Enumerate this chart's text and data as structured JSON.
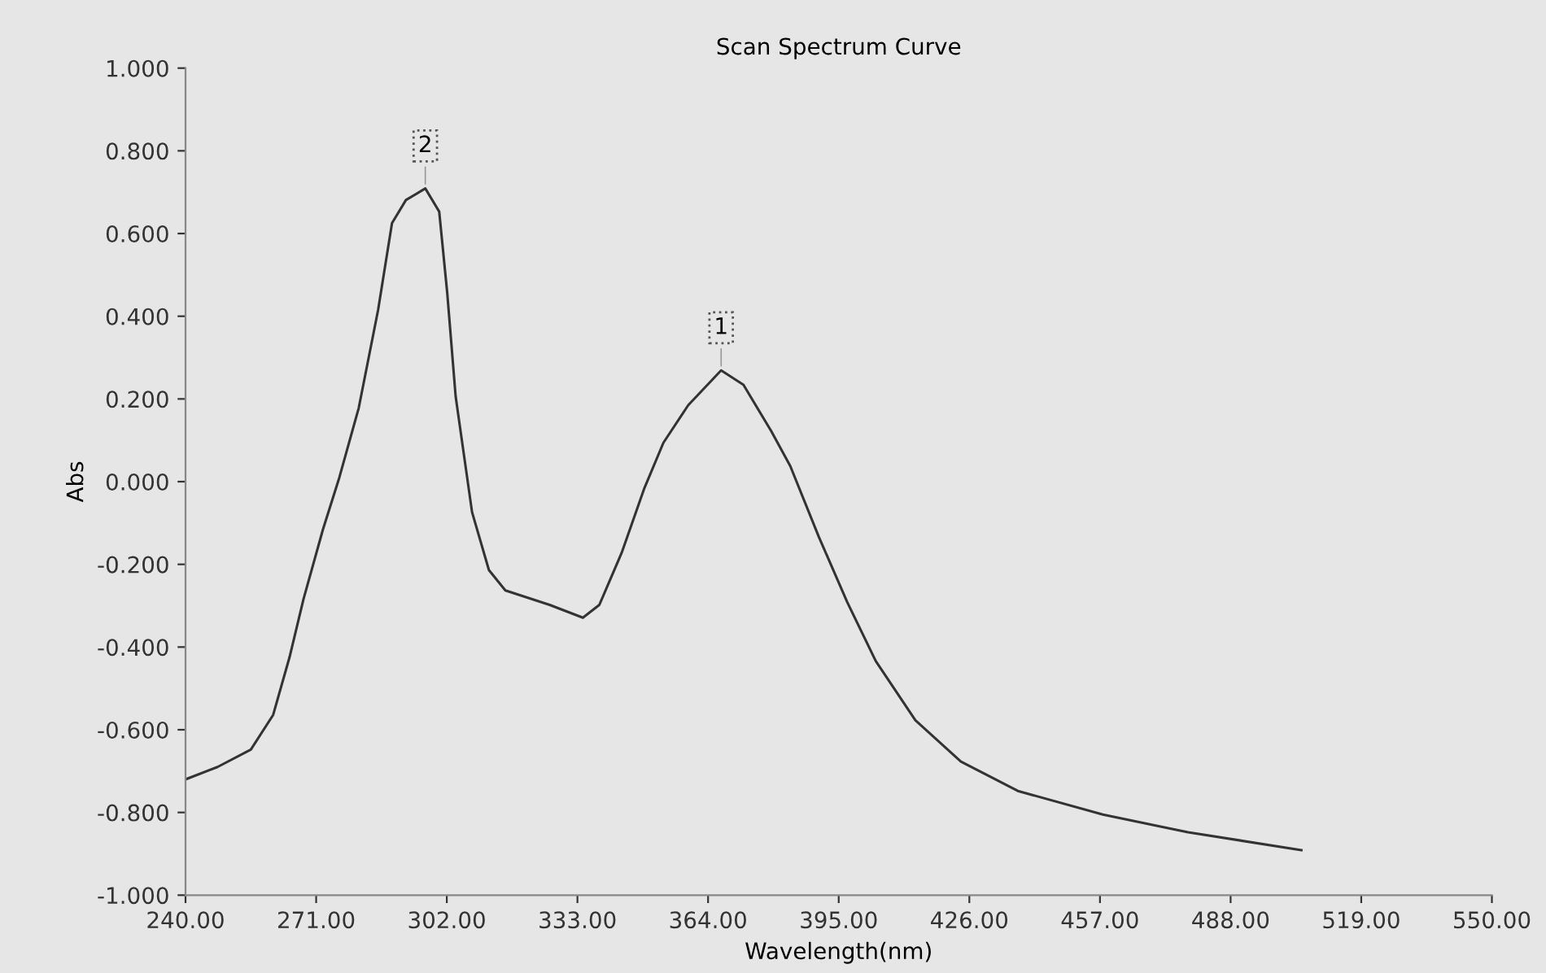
{
  "chart_data": {
    "type": "line",
    "title": "Scan Spectrum Curve",
    "xlabel": "Wavelength(nm)",
    "ylabel": "Abs",
    "series": [
      {
        "color": "#333333",
        "x": [
          240,
          247.6,
          255.5,
          260.8,
          264.7,
          268,
          272.6,
          276.5,
          281.1,
          285.7,
          289,
          292.3,
          296.9,
          300.2,
          302.1,
          304.1,
          308,
          312,
          315.9,
          326.4,
          334.3,
          338.2,
          343.5,
          348.8,
          353.4,
          359.3,
          367.1,
          372.4,
          379,
          383.5,
          390.3,
          397,
          403.8,
          413.2,
          424,
          437.5,
          457.7,
          477.9,
          504.8
        ],
        "values": [
          -0.72,
          -0.69,
          -0.648,
          -0.564,
          -0.424,
          -0.284,
          -0.116,
          0.01,
          0.178,
          0.415,
          0.625,
          0.681,
          0.709,
          0.653,
          0.457,
          0.206,
          -0.074,
          -0.214,
          -0.263,
          -0.298,
          -0.329,
          -0.298,
          -0.172,
          -0.018,
          0.094,
          0.185,
          0.269,
          0.234,
          0.122,
          0.038,
          -0.134,
          -0.291,
          -0.434,
          -0.577,
          -0.677,
          -0.748,
          -0.805,
          -0.848,
          -0.891
        ]
      }
    ],
    "annotations": [
      {
        "text": "1",
        "x": 367.1,
        "y": 0.269
      },
      {
        "text": "2",
        "x": 296.9,
        "y": 0.709
      }
    ],
    "xlim": [
      240,
      550
    ],
    "ylim": [
      -1,
      1
    ],
    "xticks": [
      {
        "value": 240,
        "label": "240.00"
      },
      {
        "value": 271,
        "label": "271.00"
      },
      {
        "value": 302,
        "label": "302.00"
      },
      {
        "value": 333,
        "label": "333.00"
      },
      {
        "value": 364,
        "label": "364.00"
      },
      {
        "value": 395,
        "label": "395.00"
      },
      {
        "value": 426,
        "label": "426.00"
      },
      {
        "value": 457,
        "label": "457.00"
      },
      {
        "value": 488,
        "label": "488.00"
      },
      {
        "value": 519,
        "label": "519.00"
      },
      {
        "value": 550,
        "label": "550.00"
      }
    ],
    "yticks": [
      {
        "value": -1,
        "label": "-1.000"
      },
      {
        "value": -0.8,
        "label": "-0.800"
      },
      {
        "value": -0.6,
        "label": "-0.600"
      },
      {
        "value": -0.4,
        "label": "-0.400"
      },
      {
        "value": -0.2,
        "label": "-0.200"
      },
      {
        "value": 0,
        "label": "0.000"
      },
      {
        "value": 0.2,
        "label": "0.200"
      },
      {
        "value": 0.4,
        "label": "0.400"
      },
      {
        "value": 0.6,
        "label": "0.600"
      },
      {
        "value": 0.8,
        "label": "0.800"
      },
      {
        "value": 1,
        "label": "1.000"
      }
    ],
    "grid": false,
    "legend": false
  }
}
